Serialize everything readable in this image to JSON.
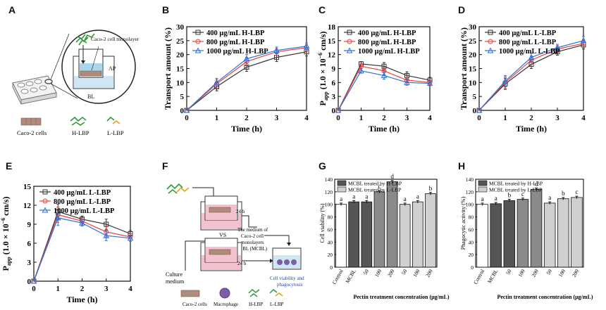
{
  "panel_labels": [
    "A",
    "B",
    "C",
    "D",
    "E",
    "F",
    "G",
    "H"
  ],
  "schematic_A": {
    "top_label": "Caco-2 cell monolayer",
    "ap": "AP",
    "bl": "BL",
    "legend": [
      "Caco-2 cells",
      "H-LBP",
      "L-LBP"
    ]
  },
  "schematic_F": {
    "vs": "VS",
    "t1": "24 h",
    "t2": "24 h",
    "medium_text": [
      "The medium of",
      "Caco-2 cell",
      "monolayers",
      "in BL (MCBL)"
    ],
    "culture": [
      "Culture",
      "medium"
    ],
    "result": [
      "Cell viability and",
      "phagocytosis"
    ],
    "legend": [
      "Caco-2 cells",
      "Macrophage",
      "H-LBP",
      "L-LBP"
    ]
  },
  "colors": {
    "black": "#333333",
    "red": "#e8413c",
    "blue": "#2f6fd6",
    "darkbar": "#555555",
    "midbar": "#8a8a8a",
    "lightbar": "#d0d0d0",
    "accent_blue": "#1b3fd6"
  },
  "chart_data": [
    {
      "id": "B",
      "type": "line",
      "xlabel": "Time (h)",
      "ylabel": "Transport amount (%)",
      "x": [
        0,
        1,
        2,
        3,
        4
      ],
      "ylim": [
        0,
        30
      ],
      "yticks": [
        0,
        5,
        10,
        15,
        20,
        25,
        30
      ],
      "xticks": [
        0,
        1,
        2,
        3,
        4
      ],
      "series": [
        {
          "name": "400 μg/mL H-LBP",
          "color": "black",
          "marker": "square",
          "values": [
            0,
            8.5,
            15.5,
            19,
            21
          ],
          "err": [
            0,
            1.5,
            1.5,
            1.5,
            1.5
          ]
        },
        {
          "name": "800 μg/mL H-LBP",
          "color": "red",
          "marker": "circle",
          "values": [
            0,
            9.5,
            17.5,
            21,
            22.5
          ],
          "err": [
            0,
            1.5,
            1.5,
            1.2,
            1.2
          ]
        },
        {
          "name": "1000 μg/mL H-LBP",
          "color": "blue",
          "marker": "triangle",
          "values": [
            0,
            10,
            18.5,
            21.5,
            23
          ],
          "err": [
            0,
            1.5,
            1.5,
            1.2,
            1.2
          ]
        }
      ]
    },
    {
      "id": "C",
      "type": "line",
      "xlabel": "Time (h)",
      "ylabel_main": "P",
      "ylabel_sub": "app",
      "ylabel_rest": " (1.0 × 10",
      "ylabel_sup": "−6",
      "ylabel_end": " cm/s)",
      "x": [
        0,
        1,
        2,
        3,
        4
      ],
      "ylim": [
        0,
        18
      ],
      "yticks": [
        0,
        3,
        6,
        9,
        12,
        15,
        18
      ],
      "xticks": [
        0,
        1,
        2,
        3,
        4
      ],
      "series": [
        {
          "name": "400 μg/mL H-LBP",
          "color": "black",
          "marker": "square",
          "values": [
            0,
            10,
            9.5,
            7.5,
            6.5
          ],
          "err": [
            0,
            0.5,
            0.8,
            0.8,
            0.6
          ]
        },
        {
          "name": "800 μg/mL  H-LBP",
          "color": "red",
          "marker": "circle",
          "values": [
            0,
            9.5,
            8.5,
            6.5,
            6
          ],
          "err": [
            0,
            0.5,
            0.8,
            0.6,
            0.5
          ]
        },
        {
          "name": "1000 μg/mL H-LBP",
          "color": "blue",
          "marker": "triangle",
          "values": [
            0,
            8.5,
            7.5,
            6,
            5.8
          ],
          "err": [
            0,
            0.5,
            0.8,
            0.6,
            0.5
          ]
        }
      ]
    },
    {
      "id": "D",
      "type": "line",
      "xlabel": "Time (h)",
      "ylabel": "Transport amount (%)",
      "x": [
        0,
        1,
        2,
        3,
        4
      ],
      "ylim": [
        0,
        30
      ],
      "yticks": [
        0,
        5,
        10,
        15,
        20,
        25,
        30
      ],
      "xticks": [
        0,
        1,
        2,
        3,
        4
      ],
      "series": [
        {
          "name": "400 μg/mL L-LBP",
          "color": "black",
          "marker": "square",
          "values": [
            0,
            9.5,
            16.5,
            21,
            23.5
          ],
          "err": [
            0,
            2,
            1.5,
            1.2,
            1.5
          ]
        },
        {
          "name": "800 μg/mL L-LBP",
          "color": "red",
          "marker": "circle",
          "values": [
            0,
            10,
            18,
            22,
            24
          ],
          "err": [
            0,
            2,
            1.5,
            1.2,
            1.5
          ]
        },
        {
          "name": "1000 μg/mL L-LBP",
          "color": "blue",
          "marker": "triangle",
          "values": [
            0,
            10.5,
            19,
            22.5,
            25
          ],
          "err": [
            0,
            2,
            1.5,
            1.2,
            1.5
          ]
        }
      ]
    },
    {
      "id": "E",
      "type": "line",
      "xlabel": "Time (h)",
      "ylabel_main": "P",
      "ylabel_sub": "app",
      "ylabel_rest": " (1.0 × 10",
      "ylabel_sup": "−6",
      "ylabel_end": " cm/s)",
      "x": [
        0,
        1,
        2,
        3,
        4
      ],
      "ylim": [
        0,
        15
      ],
      "yticks": [
        0,
        3,
        6,
        9,
        12,
        15
      ],
      "xticks": [
        0,
        1,
        2,
        3,
        4
      ],
      "series": [
        {
          "name": "400 μg/mL L-LBP",
          "color": "black",
          "marker": "square",
          "values": [
            0,
            11,
            9.8,
            9,
            7.5
          ],
          "err": [
            0,
            1.2,
            0.5,
            0.8,
            0.5
          ]
        },
        {
          "name": "800 μg/mL L-LBP",
          "color": "red",
          "marker": "circle",
          "values": [
            0,
            10.5,
            9.5,
            7.8,
            7
          ],
          "err": [
            0,
            1.2,
            0.5,
            0.8,
            0.5
          ]
        },
        {
          "name": "1000 μg/mL L-LBP",
          "color": "blue",
          "marker": "triangle",
          "values": [
            0,
            10,
            9.2,
            7.2,
            6.8
          ],
          "err": [
            0,
            1.2,
            0.5,
            0.8,
            0.5
          ]
        }
      ]
    },
    {
      "id": "G",
      "type": "bar",
      "ylabel": "Cell viability (%)",
      "xlabel": "Pectin treatment concentration (μg/mL)",
      "ylim": [
        0,
        140
      ],
      "yticks": [
        0,
        20,
        40,
        60,
        80,
        100,
        120,
        140
      ],
      "legend": [
        "MCBL treated by H-LBP",
        "MCBL treated by L-LBP"
      ],
      "categories": [
        "Control",
        "MCBL",
        "50",
        "100",
        "200",
        "50",
        "100",
        "200"
      ],
      "kinds": [
        "white",
        "dark",
        "dark",
        "mid",
        "mid",
        "light",
        "light",
        "light"
      ],
      "values": [
        100,
        104,
        104,
        120,
        136,
        100,
        104,
        117
      ],
      "err": [
        2,
        2,
        2,
        2,
        2,
        2,
        2,
        2
      ],
      "letters": [
        "a",
        "a",
        "a",
        "c",
        "d",
        "a",
        "a",
        "b"
      ]
    },
    {
      "id": "H",
      "type": "bar",
      "ylabel": "Phagocytic activity (%)",
      "xlabel": "Pectin treatment concentration (μg/mL)",
      "ylim": [
        0,
        140
      ],
      "yticks": [
        0,
        20,
        40,
        60,
        80,
        100,
        120,
        140
      ],
      "legend": [
        "MCBL treated by H-LBP",
        "MCBL treated by L-LBP"
      ],
      "categories": [
        "Control",
        "MCBL",
        "50",
        "100",
        "200",
        "50",
        "100",
        "200"
      ],
      "kinds": [
        "white",
        "dark",
        "dark",
        "mid",
        "mid",
        "light",
        "light",
        "light"
      ],
      "values": [
        100,
        101,
        106,
        108,
        124,
        102,
        109,
        111
      ],
      "err": [
        2,
        2,
        2,
        2,
        2,
        2,
        2,
        2
      ],
      "letters": [
        "a",
        "a",
        "b",
        "c",
        "d",
        "a",
        "b",
        "c"
      ]
    }
  ]
}
